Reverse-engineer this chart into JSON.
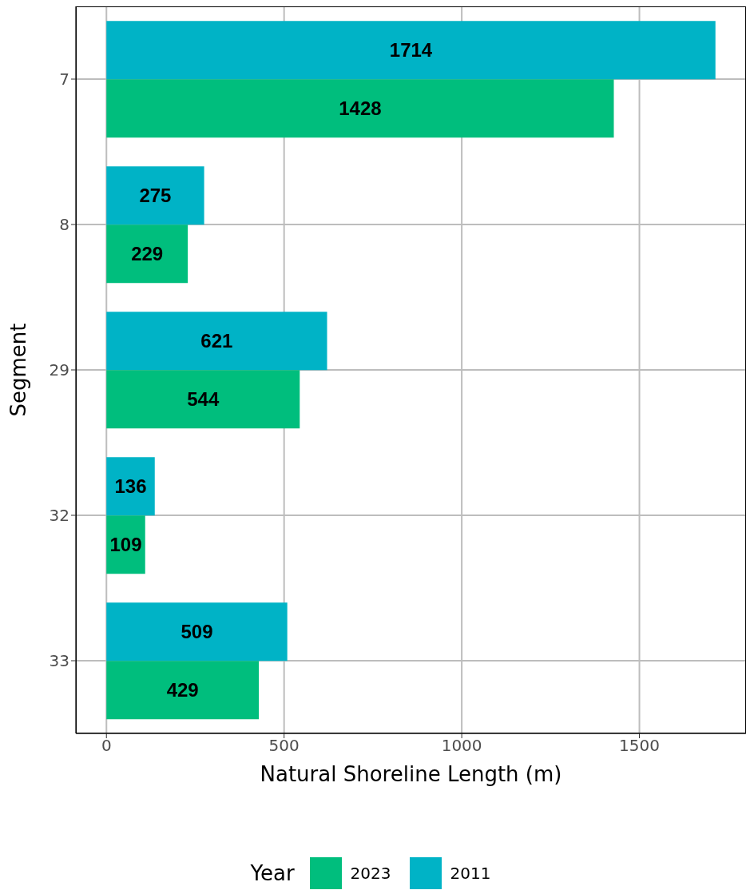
{
  "chart_data": {
    "type": "bar",
    "orientation": "horizontal",
    "xlabel": "Natural Shoreline Length (m)",
    "ylabel": "Segment",
    "legend_title": "Year",
    "categories": [
      "7",
      "8",
      "29",
      "32",
      "33"
    ],
    "series": [
      {
        "name": "2023",
        "color": "#00be7d",
        "values": [
          1428,
          229,
          544,
          109,
          429
        ]
      },
      {
        "name": "2011",
        "color": "#00b3c6",
        "values": [
          1714,
          275,
          621,
          136,
          509
        ]
      }
    ],
    "xlim": [
      -86,
      1800
    ],
    "xticks": [
      0,
      500,
      1000,
      1500
    ],
    "grid": true,
    "legend": "bottom",
    "data_labels": true
  }
}
